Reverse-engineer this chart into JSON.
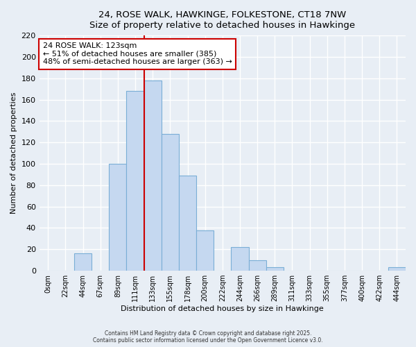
{
  "title": "24, ROSE WALK, HAWKINGE, FOLKESTONE, CT18 7NW",
  "subtitle": "Size of property relative to detached houses in Hawkinge",
  "xlabel": "Distribution of detached houses by size in Hawkinge",
  "ylabel": "Number of detached properties",
  "bin_labels": [
    "0sqm",
    "22sqm",
    "44sqm",
    "67sqm",
    "89sqm",
    "111sqm",
    "133sqm",
    "155sqm",
    "178sqm",
    "200sqm",
    "222sqm",
    "244sqm",
    "266sqm",
    "289sqm",
    "311sqm",
    "333sqm",
    "355sqm",
    "377sqm",
    "400sqm",
    "422sqm",
    "444sqm"
  ],
  "bar_values": [
    0,
    0,
    16,
    0,
    100,
    168,
    178,
    128,
    89,
    38,
    0,
    22,
    10,
    3,
    0,
    0,
    0,
    0,
    0,
    0,
    3
  ],
  "bar_color": "#c5d8f0",
  "bar_edge_color": "#7aaed6",
  "vline_x_bin": 6,
  "vline_color": "#cc0000",
  "annotation_box_title": "24 ROSE WALK: 123sqm",
  "annotation_line1": "← 51% of detached houses are smaller (385)",
  "annotation_line2": "48% of semi-detached houses are larger (363) →",
  "annotation_box_color": "#ffffff",
  "annotation_box_edge_color": "#cc0000",
  "ylim": [
    0,
    220
  ],
  "yticks": [
    0,
    20,
    40,
    60,
    80,
    100,
    120,
    140,
    160,
    180,
    200,
    220
  ],
  "footer_line1": "Contains HM Land Registry data © Crown copyright and database right 2025.",
  "footer_line2": "Contains public sector information licensed under the Open Government Licence v3.0.",
  "bg_color": "#e8eef5"
}
